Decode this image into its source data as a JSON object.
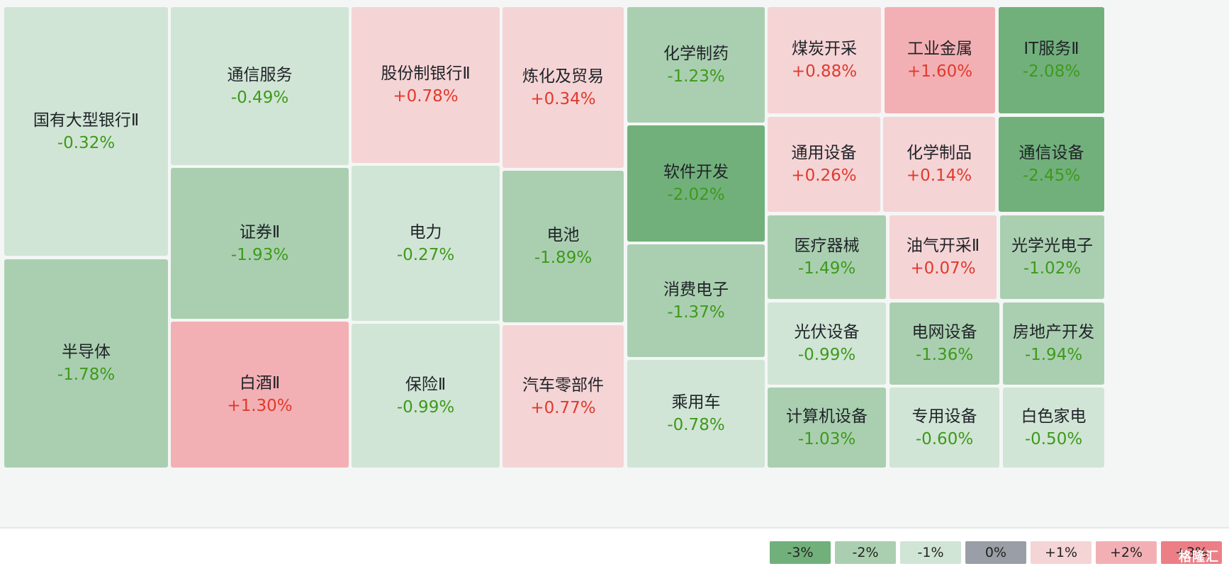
{
  "chart_data": {
    "type": "heatmap",
    "title": "",
    "tiles": [
      {
        "name": "国有大型银行Ⅱ",
        "change": "-0.32%",
        "value": -0.32
      },
      {
        "name": "半导体",
        "change": "-1.78%",
        "value": -1.78
      },
      {
        "name": "通信服务",
        "change": "-0.49%",
        "value": -0.49
      },
      {
        "name": "证券Ⅱ",
        "change": "-1.93%",
        "value": -1.93
      },
      {
        "name": "白酒Ⅱ",
        "change": "+1.30%",
        "value": 1.3
      },
      {
        "name": "股份制银行Ⅱ",
        "change": "+0.78%",
        "value": 0.78
      },
      {
        "name": "电力",
        "change": "-0.27%",
        "value": -0.27
      },
      {
        "name": "保险Ⅱ",
        "change": "-0.99%",
        "value": -0.99
      },
      {
        "name": "炼化及贸易",
        "change": "+0.34%",
        "value": 0.34
      },
      {
        "name": "电池",
        "change": "-1.89%",
        "value": -1.89
      },
      {
        "name": "汽车零部件",
        "change": "+0.77%",
        "value": 0.77
      },
      {
        "name": "化学制药",
        "change": "-1.23%",
        "value": -1.23
      },
      {
        "name": "软件开发",
        "change": "-2.02%",
        "value": -2.02
      },
      {
        "name": "消费电子",
        "change": "-1.37%",
        "value": -1.37
      },
      {
        "name": "乘用车",
        "change": "-0.78%",
        "value": -0.78
      },
      {
        "name": "煤炭开采",
        "change": "+0.88%",
        "value": 0.88
      },
      {
        "name": "工业金属",
        "change": "+1.60%",
        "value": 1.6
      },
      {
        "name": "IT服务Ⅱ",
        "change": "-2.08%",
        "value": -2.08
      },
      {
        "name": "通用设备",
        "change": "+0.26%",
        "value": 0.26
      },
      {
        "name": "化学制品",
        "change": "+0.14%",
        "value": 0.14
      },
      {
        "name": "通信设备",
        "change": "-2.45%",
        "value": -2.45
      },
      {
        "name": "医疗器械",
        "change": "-1.49%",
        "value": -1.49
      },
      {
        "name": "油气开采Ⅱ",
        "change": "+0.07%",
        "value": 0.07
      },
      {
        "name": "光学光电子",
        "change": "-1.02%",
        "value": -1.02
      },
      {
        "name": "光伏设备",
        "change": "-0.99%",
        "value": -0.99
      },
      {
        "name": "电网设备",
        "change": "-1.36%",
        "value": -1.36
      },
      {
        "name": "房地产开发",
        "change": "-1.94%",
        "value": -1.94
      },
      {
        "name": "计算机设备",
        "change": "-1.03%",
        "value": -1.03
      },
      {
        "name": "专用设备",
        "change": "-0.60%",
        "value": -0.6
      },
      {
        "name": "白色家电",
        "change": "-0.50%",
        "value": -0.5
      }
    ],
    "legend": [
      {
        "label": "-3%",
        "color": "#72b07b"
      },
      {
        "label": "-2%",
        "color": "#aacfb0"
      },
      {
        "label": "-1%",
        "color": "#d1e5d6"
      },
      {
        "label": "0%",
        "color": "#9a9ea6"
      },
      {
        "label": "+1%",
        "color": "#f5d4d6"
      },
      {
        "label": "+2%",
        "color": "#f3b0b4"
      },
      {
        "label": "+3%",
        "color": "#ec7f86"
      }
    ],
    "text_colors": {
      "negative": "#3d9a1a",
      "positive": "#e03a2c"
    }
  },
  "watermark": "格隆汇"
}
